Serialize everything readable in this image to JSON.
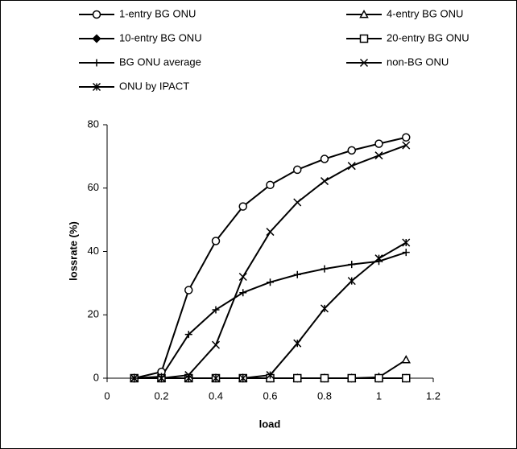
{
  "chart_data": {
    "type": "line",
    "x_label": "load",
    "y_label": "lossrate (%)",
    "x": [
      0.1,
      0.2,
      0.3,
      0.4,
      0.5,
      0.6,
      0.7,
      0.8,
      0.9,
      1.0,
      1.1
    ],
    "xlim": [
      0,
      1.2
    ],
    "xticks": [
      0,
      0.2,
      0.4,
      0.6,
      0.8,
      1,
      1.2
    ],
    "ylim": [
      0,
      80
    ],
    "yticks": [
      0,
      20,
      40,
      60,
      80
    ],
    "grid": false,
    "legend": "top",
    "series": [
      {
        "name": "1-entry BG ONU",
        "color": "#000000",
        "marker": "circle",
        "values": [
          0,
          2,
          27.8,
          43.3,
          54.2,
          61,
          65.8,
          69.2,
          71.9,
          74,
          76
        ]
      },
      {
        "name": "4-entry BG ONU",
        "color": "#000000",
        "marker": "triangle",
        "values": [
          0,
          0,
          0,
          0,
          0,
          0,
          0,
          0,
          0,
          0.3,
          5.8
        ]
      },
      {
        "name": "10-entry BG ONU",
        "color": "#000000",
        "marker": "diamond",
        "values": [
          0,
          0,
          0,
          0,
          0,
          0,
          0,
          0,
          0,
          0,
          0
        ]
      },
      {
        "name": "20-entry BG ONU",
        "color": "#000000",
        "marker": "square",
        "values": [
          0,
          0,
          0,
          0,
          0,
          0,
          0,
          0,
          0,
          0,
          0
        ]
      },
      {
        "name": "BG ONU average",
        "color": "#000000",
        "marker": "plus",
        "values": [
          0,
          0.5,
          13.8,
          21.6,
          27,
          30.3,
          32.7,
          34.5,
          35.9,
          36.9,
          39.7
        ]
      },
      {
        "name": "non-BG ONU",
        "color": "#000000",
        "marker": "cross",
        "values": [
          0,
          0,
          1,
          10.5,
          32,
          46.2,
          55.5,
          62.2,
          67,
          70.3,
          73.5
        ]
      },
      {
        "name": "ONU by IPACT",
        "color": "#000000",
        "marker": "star",
        "values": [
          0,
          0,
          0,
          0,
          0,
          1,
          11,
          22,
          30.7,
          37.8,
          42.8
        ]
      }
    ]
  }
}
